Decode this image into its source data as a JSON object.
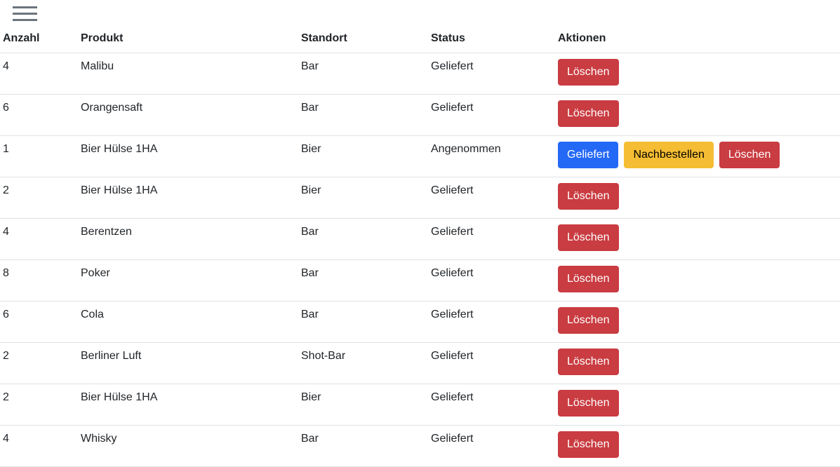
{
  "menu_icon": "hamburger-menu-icon",
  "headers": [
    "Anzahl",
    "Produkt",
    "Standort",
    "Status",
    "Aktionen"
  ],
  "colors": {
    "danger": "#c93c41",
    "primary": "#2468f6",
    "warning": "#f5bd33"
  },
  "rows": [
    {
      "anzahl": "4",
      "produkt": "Malibu",
      "standort": "Bar",
      "status": "Geliefert",
      "actions": [
        "Löschen"
      ]
    },
    {
      "anzahl": "6",
      "produkt": "Orangensaft",
      "standort": "Bar",
      "status": "Geliefert",
      "actions": [
        "Löschen"
      ]
    },
    {
      "anzahl": "1",
      "produkt": "Bier Hülse 1HA",
      "standort": "Bier",
      "status": "Angenommen",
      "actions": [
        "Geliefert",
        "Nachbestellen",
        "Löschen"
      ]
    },
    {
      "anzahl": "2",
      "produkt": "Bier Hülse 1HA",
      "standort": "Bier",
      "status": "Geliefert",
      "actions": [
        "Löschen"
      ]
    },
    {
      "anzahl": "4",
      "produkt": "Berentzen",
      "standort": "Bar",
      "status": "Geliefert",
      "actions": [
        "Löschen"
      ]
    },
    {
      "anzahl": "8",
      "produkt": "Poker",
      "standort": "Bar",
      "status": "Geliefert",
      "actions": [
        "Löschen"
      ]
    },
    {
      "anzahl": "6",
      "produkt": "Cola",
      "standort": "Bar",
      "status": "Geliefert",
      "actions": [
        "Löschen"
      ]
    },
    {
      "anzahl": "2",
      "produkt": "Berliner Luft",
      "standort": "Shot-Bar",
      "status": "Geliefert",
      "actions": [
        "Löschen"
      ]
    },
    {
      "anzahl": "2",
      "produkt": "Bier Hülse 1HA",
      "standort": "Bier",
      "status": "Geliefert",
      "actions": [
        "Löschen"
      ]
    },
    {
      "anzahl": "4",
      "produkt": "Whisky",
      "standort": "Bar",
      "status": "Geliefert",
      "actions": [
        "Löschen"
      ]
    }
  ]
}
